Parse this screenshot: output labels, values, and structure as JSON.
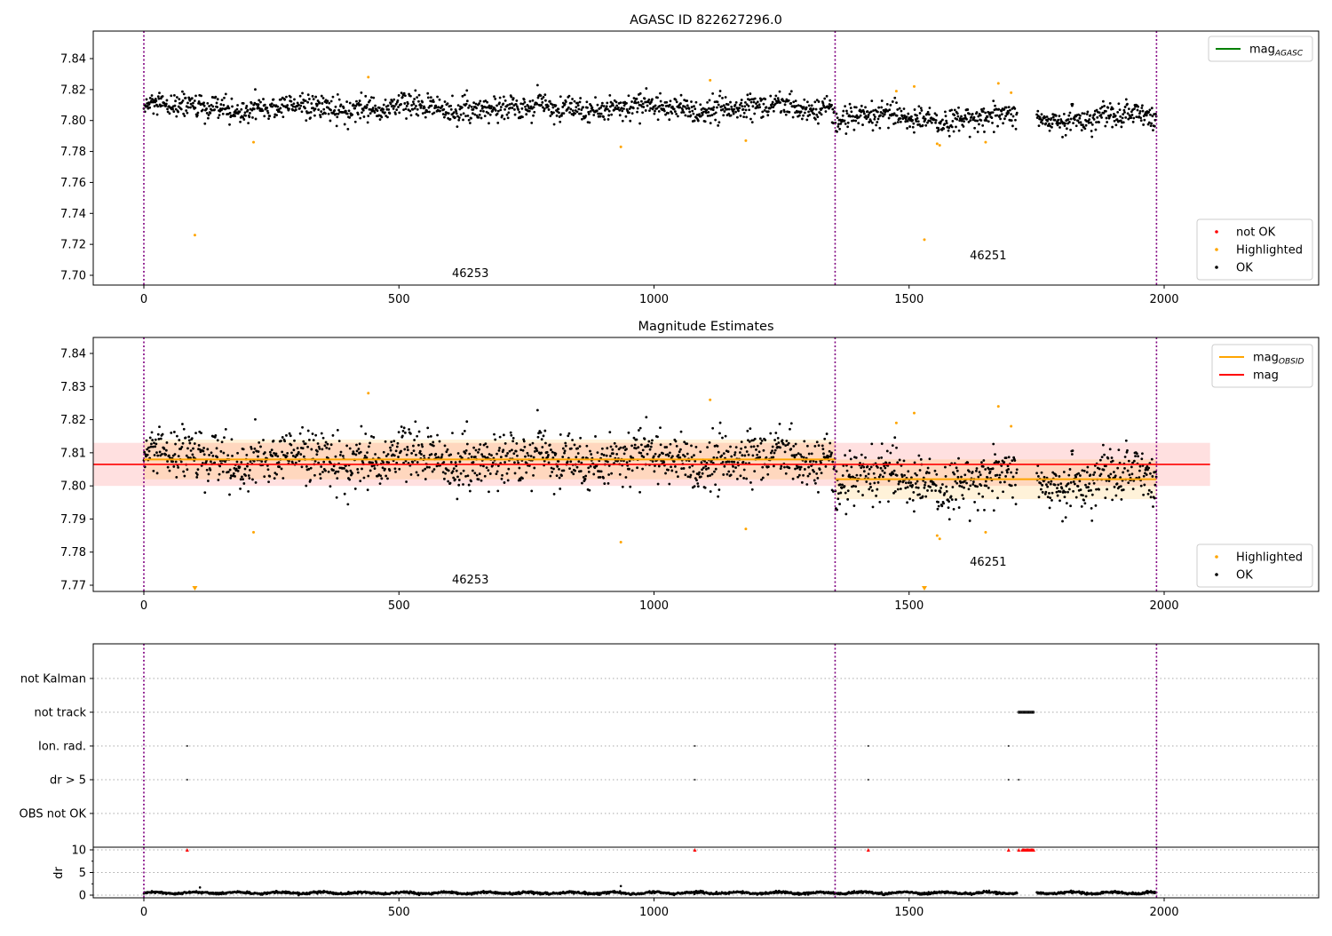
{
  "chart_data": [
    {
      "type": "scatter",
      "title": "AGASC ID 822627296.0",
      "xlim": [
        -100,
        2300
      ],
      "ylim": [
        7.694,
        7.858
      ],
      "xticks": [
        0,
        500,
        1000,
        1500,
        2000
      ],
      "yticks": [
        7.7,
        7.72,
        7.74,
        7.76,
        7.78,
        7.8,
        7.82,
        7.84
      ],
      "legend_lines": [
        {
          "label": "mag",
          "sub": "AGASC",
          "color": "#008000"
        }
      ],
      "legend_lines_placement": "top-right",
      "legend_points": [
        {
          "label": "not OK",
          "color": "#ff0000"
        },
        {
          "label": "Highlighted",
          "color": "#ffa500"
        },
        {
          "label": "OK",
          "color": "#000000"
        }
      ],
      "legend_points_placement": "bottom-right",
      "obsid_labels": [
        {
          "text": "46253",
          "x": 640
        },
        {
          "text": "46251",
          "x": 1655
        }
      ],
      "obsid_boundaries": [
        0,
        1355,
        1985
      ]
    },
    {
      "type": "scatter",
      "title": "Magnitude Estimates",
      "xlim": [
        -100,
        2300
      ],
      "ylim": [
        7.768,
        7.845
      ],
      "xticks": [
        0,
        500,
        1000,
        1500,
        2000
      ],
      "yticks": [
        7.77,
        7.78,
        7.79,
        7.8,
        7.81,
        7.82,
        7.83,
        7.84
      ],
      "legend_lines": [
        {
          "label": "mag",
          "sub": "OBSID",
          "color": "#ffa500"
        },
        {
          "label": "mag",
          "sub": "",
          "color": "#ff0000"
        }
      ],
      "legend_points": [
        {
          "label": "Highlighted",
          "color": "#ffa500"
        },
        {
          "label": "OK",
          "color": "#000000"
        }
      ],
      "mag_overall": {
        "value": 7.8065,
        "std": 0.0065,
        "x_range": [
          -100,
          2090
        ]
      },
      "mag_obsid": [
        {
          "obsid": "46253",
          "x_range": [
            0,
            1355
          ],
          "value": 7.808,
          "std": 0.006
        },
        {
          "obsid": "46251",
          "x_range": [
            1355,
            1985
          ],
          "value": 7.802,
          "std": 0.006
        }
      ],
      "obsid_labels": [
        {
          "text": "46253",
          "x": 640
        },
        {
          "text": "46251",
          "x": 1655
        }
      ]
    },
    {
      "type": "scatter",
      "title": "",
      "categories": [
        "not Kalman",
        "not track",
        "Ion. rad.",
        "dr > 5",
        "OBS not OK"
      ],
      "flags": {
        "not track": [
          [
            1715,
            1745
          ]
        ],
        "Ion. rad.": [
          85,
          1080,
          1420,
          1695
        ],
        "dr > 5": [
          85,
          1080,
          1420,
          1695,
          1715
        ]
      },
      "dr_ylabel": "dr",
      "dr_yticks": [
        0,
        5,
        10
      ],
      "dr_ylim": [
        -0.5,
        10.6
      ],
      "dr_clipped_points_at": 10,
      "dr_typical": 0.5,
      "dr_outliers": [
        [
          110,
          1.7
        ],
        [
          935,
          2.0
        ]
      ],
      "xticks": [
        0,
        500,
        1000,
        1500,
        2000
      ]
    }
  ],
  "highlighted_points": [
    [
      100,
      7.726
    ],
    [
      215,
      7.786
    ],
    [
      440,
      7.828
    ],
    [
      935,
      7.783
    ],
    [
      1110,
      7.826
    ],
    [
      1180,
      7.787
    ],
    [
      1475,
      7.819
    ],
    [
      1510,
      7.822
    ],
    [
      1530,
      7.723
    ],
    [
      1555,
      7.785
    ],
    [
      1560,
      7.784
    ],
    [
      1650,
      7.786
    ],
    [
      1675,
      7.824
    ],
    [
      1700,
      7.818
    ]
  ],
  "series_model": {
    "x_start": 0,
    "x_end": 1985,
    "gap": [
      1712,
      1750
    ],
    "mean_by_obsid": [
      7.808,
      7.802
    ],
    "scatter_std": 0.005,
    "seed": 12345
  }
}
